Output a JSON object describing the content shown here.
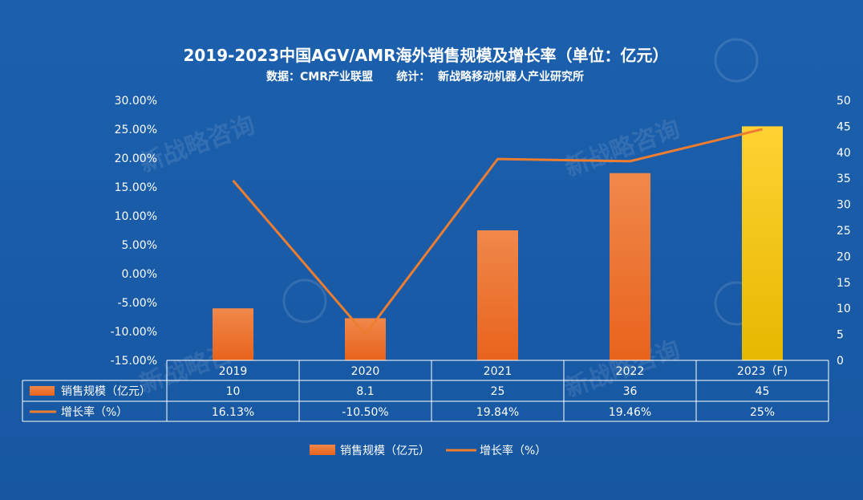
{
  "colors": {
    "background": "#1a5ca8",
    "bar_top": "#f0884a",
    "bar_bottom": "#e8631c",
    "bar_forecast_top": "#ffd233",
    "bar_forecast_bottom": "#e6b800",
    "line": "#ed7d31",
    "text": "#ffffff"
  },
  "chart_data": {
    "type": "bar",
    "title": "2019-2023中国AGV/AMR海外销售规模及增长率（单位：亿元）",
    "subtitle": "数据：CMR产业联盟      统计：  新战略移动机器人产业研究所",
    "categories": [
      "2019",
      "2020",
      "2021",
      "2022",
      "2023（F)"
    ],
    "series": [
      {
        "name": "销售规模（亿元）",
        "type": "bar",
        "axis": "right",
        "values": [
          10,
          8.1,
          25,
          36,
          45
        ],
        "labels": [
          "10",
          "8.1",
          "25",
          "36",
          "45"
        ]
      },
      {
        "name": "增长率（%）",
        "type": "line",
        "axis": "left",
        "values": [
          16.13,
          -10.5,
          19.84,
          19.46,
          25
        ],
        "labels": [
          "16.13%",
          "-10.50%",
          "19.84%",
          "19.46%",
          "25%"
        ]
      }
    ],
    "y_left": {
      "ylim": [
        -15,
        30
      ],
      "ticks": [
        "30.00%",
        "25.00%",
        "20.00%",
        "15.00%",
        "10.00%",
        "5.00%",
        "0.00%",
        "-5.00%",
        "-10.00%",
        "-15.00%"
      ]
    },
    "y_right": {
      "ylim": [
        0,
        50
      ],
      "ticks": [
        "50",
        "45",
        "40",
        "35",
        "30",
        "25",
        "20",
        "15",
        "10",
        "5",
        "0"
      ]
    },
    "grid": false,
    "legend_position": "bottom",
    "data_table": true
  }
}
